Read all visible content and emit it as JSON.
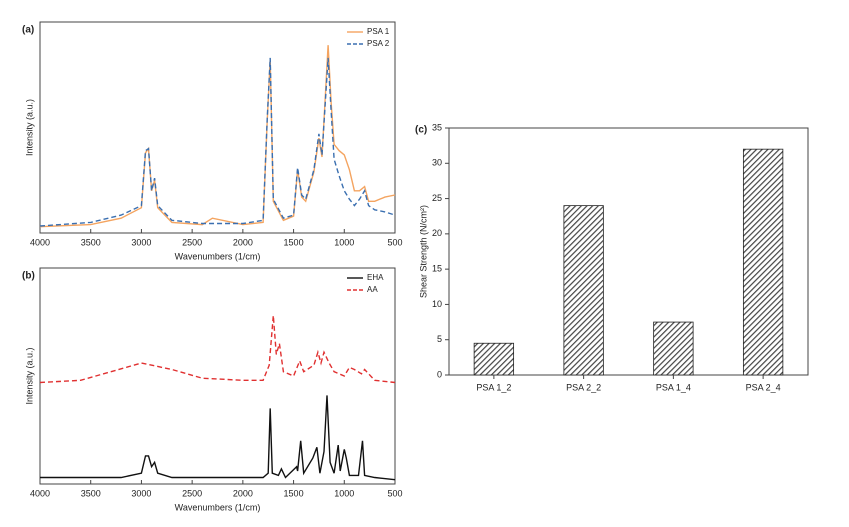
{
  "chart_data": [
    {
      "type": "line",
      "label": "(a)",
      "x_label": "Wavenumbers (1/cm)",
      "y_label": "Intensity (a.u.)",
      "xlim": [
        4000,
        500
      ],
      "xticks": [
        4000,
        3500,
        3000,
        2500,
        2000,
        1500,
        1000,
        500
      ],
      "ylim": [
        0,
        1
      ],
      "legend": "top-right",
      "series": [
        {
          "name": "PSA 1",
          "color": "#f4a460",
          "dash": false,
          "x": [
            4000,
            3500,
            3200,
            3000,
            2960,
            2930,
            2900,
            2870,
            2840,
            2700,
            2400,
            2300,
            2000,
            1800,
            1760,
            1730,
            1700,
            1600,
            1500,
            1460,
            1420,
            1380,
            1300,
            1250,
            1220,
            1160,
            1130,
            1100,
            1050,
            1000,
            950,
            900,
            850,
            800,
            760,
            700,
            600,
            500
          ],
          "values": [
            0.03,
            0.04,
            0.07,
            0.12,
            0.38,
            0.4,
            0.2,
            0.25,
            0.12,
            0.05,
            0.04,
            0.07,
            0.04,
            0.05,
            0.53,
            0.82,
            0.15,
            0.06,
            0.08,
            0.3,
            0.17,
            0.15,
            0.29,
            0.45,
            0.36,
            0.89,
            0.62,
            0.42,
            0.39,
            0.37,
            0.3,
            0.2,
            0.2,
            0.22,
            0.15,
            0.15,
            0.17,
            0.18
          ]
        },
        {
          "name": "PSA 2",
          "color": "#3a6fb0",
          "dash": true,
          "x": [
            4000,
            3500,
            3200,
            3000,
            2960,
            2930,
            2900,
            2870,
            2840,
            2700,
            2400,
            2300,
            2000,
            1800,
            1760,
            1730,
            1700,
            1600,
            1500,
            1460,
            1420,
            1380,
            1300,
            1250,
            1220,
            1160,
            1130,
            1100,
            1050,
            1000,
            950,
            900,
            850,
            800,
            760,
            700,
            600,
            500
          ],
          "values": [
            0.033,
            0.05,
            0.085,
            0.13,
            0.39,
            0.4,
            0.2,
            0.26,
            0.13,
            0.06,
            0.045,
            0.045,
            0.045,
            0.06,
            0.54,
            0.83,
            0.16,
            0.07,
            0.085,
            0.31,
            0.18,
            0.16,
            0.3,
            0.47,
            0.37,
            0.83,
            0.58,
            0.35,
            0.27,
            0.2,
            0.16,
            0.13,
            0.16,
            0.2,
            0.13,
            0.11,
            0.1,
            0.085
          ]
        }
      ]
    },
    {
      "type": "line",
      "label": "(b)",
      "x_label": "Wavenumbers (1/cm)",
      "y_label": "Intensity (a.u.)",
      "xlim": [
        4000,
        500
      ],
      "xticks": [
        4000,
        3500,
        3000,
        2500,
        2000,
        1500,
        1000,
        500
      ],
      "ylim": [
        0,
        1
      ],
      "legend": "top-right",
      "series": [
        {
          "name": "EHA",
          "color": "#111111",
          "dash": false,
          "x": [
            4000,
            3200,
            3000,
            2960,
            2930,
            2900,
            2870,
            2840,
            2700,
            1800,
            1750,
            1730,
            1710,
            1650,
            1620,
            1580,
            1470,
            1460,
            1430,
            1400,
            1310,
            1270,
            1240,
            1200,
            1170,
            1140,
            1100,
            1060,
            1040,
            1000,
            980,
            950,
            860,
            820,
            800,
            700,
            500
          ],
          "values": [
            0.03,
            0.03,
            0.05,
            0.13,
            0.13,
            0.08,
            0.1,
            0.05,
            0.03,
            0.03,
            0.05,
            0.35,
            0.05,
            0.04,
            0.07,
            0.03,
            0.08,
            0.06,
            0.2,
            0.05,
            0.12,
            0.17,
            0.05,
            0.15,
            0.41,
            0.1,
            0.05,
            0.18,
            0.06,
            0.16,
            0.12,
            0.04,
            0.04,
            0.2,
            0.04,
            0.03,
            0.02
          ]
        },
        {
          "name": "AA",
          "color": "#e03030",
          "dash": true,
          "x": [
            4000,
            3600,
            3300,
            3000,
            2700,
            2400,
            2000,
            1800,
            1740,
            1700,
            1670,
            1640,
            1600,
            1500,
            1440,
            1400,
            1300,
            1260,
            1230,
            1200,
            1150,
            1100,
            1000,
            950,
            900,
            830,
            800,
            700,
            500
          ],
          "values": [
            0.47,
            0.48,
            0.52,
            0.56,
            0.53,
            0.49,
            0.48,
            0.48,
            0.55,
            0.78,
            0.6,
            0.65,
            0.52,
            0.5,
            0.57,
            0.52,
            0.55,
            0.61,
            0.56,
            0.61,
            0.56,
            0.52,
            0.5,
            0.54,
            0.53,
            0.51,
            0.53,
            0.48,
            0.47
          ]
        }
      ]
    },
    {
      "type": "bar",
      "label": "(c)",
      "y_label": "Shear Strength (N/cm²)",
      "categories": [
        "PSA 1_2",
        "PSA 2_2",
        "PSA 1_4",
        "PSA 2_4"
      ],
      "values": [
        4.5,
        24,
        7.5,
        32
      ],
      "color": "#444444",
      "ylim": [
        0,
        35
      ],
      "yticks": [
        0,
        5,
        10,
        15,
        20,
        25,
        30,
        35
      ]
    }
  ]
}
